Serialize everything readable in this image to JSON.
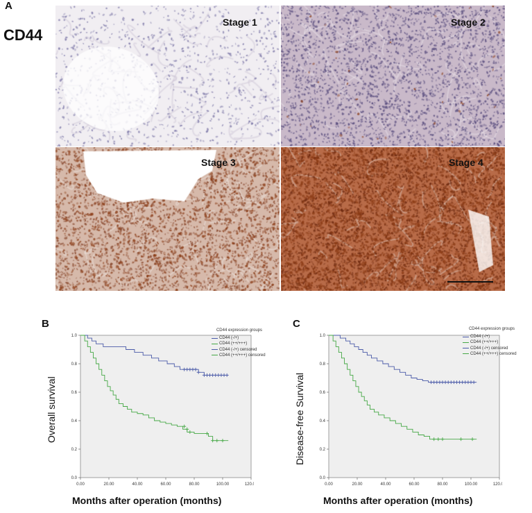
{
  "figure": {
    "panel_a": {
      "letter": "A",
      "marker": "CD44",
      "tiles": [
        {
          "label": "Stage 1",
          "base": "#f1eef2",
          "dot": "#7d78a8",
          "dots": 900,
          "brown": 0,
          "stroma": "#cfc8d8"
        },
        {
          "label": "Stage 2",
          "base": "#c9b9c9",
          "dot": "#5b4f80",
          "dots": 2600,
          "brown": 40,
          "stroma": "#e8e0e8"
        },
        {
          "label": "Stage 3",
          "base": "#d6b9aa",
          "dot": "#8a4a30",
          "dots": 2400,
          "brown": 1200,
          "stroma": "#ece2dc"
        },
        {
          "label": "Stage 4",
          "base": "#b86b48",
          "dot": "#6e2a10",
          "dots": 3200,
          "brown": 2800,
          "stroma": "#d9c2b6"
        }
      ]
    },
    "panel_b": {
      "letter": "B"
    },
    "panel_c": {
      "letter": "C"
    }
  },
  "chart_data": [
    {
      "type": "line",
      "subtype": "kaplan-meier",
      "xlabel": "Months after operation (months)",
      "ylabel": "Overall survival",
      "xlim": [
        0,
        120
      ],
      "ylim": [
        0,
        1
      ],
      "xticks": [
        "0.00",
        "20.00",
        "40.00",
        "60.00",
        "80.00",
        "100.00",
        "120.00"
      ],
      "yticks": [
        "0.0",
        "0.2",
        "0.4",
        "0.6",
        "0.8",
        "1.0"
      ],
      "grid": false,
      "legend_placement": "top-right",
      "legend": {
        "title": "CD44 expression groups",
        "entries": [
          "CD44 (-/+)",
          "CD44 (++/+++)",
          "CD44 (-/+) censored",
          "CD44 (++/+++) censored"
        ]
      },
      "colors": {
        "low": "#4a5aa8",
        "high": "#45a845"
      },
      "series": [
        {
          "name": "CD44 (-/+)",
          "color": "#4a5aa8",
          "x": [
            0,
            5,
            8,
            11,
            16,
            21,
            32,
            38,
            44,
            50,
            55,
            61,
            66,
            70,
            79,
            83,
            87,
            104
          ],
          "y": [
            1.0,
            0.98,
            0.96,
            0.94,
            0.92,
            0.92,
            0.9,
            0.88,
            0.86,
            0.84,
            0.82,
            0.8,
            0.78,
            0.76,
            0.76,
            0.74,
            0.72,
            0.72
          ],
          "censored_x": [
            73,
            75,
            77,
            79,
            81,
            83,
            87,
            89,
            91,
            93,
            95,
            97,
            99,
            101,
            103
          ],
          "censored_y": [
            0.76,
            0.76,
            0.76,
            0.76,
            0.76,
            0.74,
            0.72,
            0.72,
            0.72,
            0.72,
            0.72,
            0.72,
            0.72,
            0.72,
            0.72
          ]
        },
        {
          "name": "CD44 (++/+++)",
          "color": "#45a845",
          "x": [
            0,
            3,
            5,
            7,
            9,
            11,
            13,
            15,
            17,
            19,
            21,
            23,
            25,
            27,
            30,
            33,
            36,
            40,
            44,
            48,
            52,
            56,
            60,
            64,
            68,
            72,
            75,
            80,
            86,
            90,
            93,
            104
          ],
          "y": [
            1.0,
            0.96,
            0.92,
            0.88,
            0.84,
            0.8,
            0.76,
            0.72,
            0.68,
            0.64,
            0.61,
            0.58,
            0.55,
            0.52,
            0.5,
            0.48,
            0.46,
            0.45,
            0.44,
            0.42,
            0.4,
            0.39,
            0.38,
            0.37,
            0.36,
            0.34,
            0.32,
            0.31,
            0.31,
            0.29,
            0.26,
            0.26
          ],
          "censored_x": [
            73,
            75,
            77,
            89,
            93,
            96,
            100
          ],
          "censored_y": [
            0.36,
            0.34,
            0.32,
            0.31,
            0.26,
            0.26,
            0.26
          ]
        }
      ]
    },
    {
      "type": "line",
      "subtype": "kaplan-meier",
      "xlabel": "Months after operation (months)",
      "ylabel": "Disease-free Survival",
      "xlim": [
        0,
        120
      ],
      "ylim": [
        0,
        1
      ],
      "xticks": [
        "0.00",
        "20.00",
        "40.00",
        "60.00",
        "80.00",
        "100.00",
        "120.00"
      ],
      "yticks": [
        "0.0",
        "0.2",
        "0.4",
        "0.6",
        "0.8",
        "1.0"
      ],
      "grid": false,
      "legend_placement": "top-right",
      "legend": {
        "title": "CD44 expression groups",
        "entries": [
          "CD44 (-/+)",
          "CD44 (++/+++)",
          "CD44 (-/+) censored",
          "CD44 (++/+++) censored"
        ]
      },
      "colors": {
        "low": "#4a5aa8",
        "high": "#45a845"
      },
      "series": [
        {
          "name": "CD44 (-/+)",
          "color": "#4a5aa8",
          "x": [
            0,
            8,
            12,
            15,
            18,
            21,
            24,
            27,
            30,
            34,
            38,
            42,
            46,
            50,
            54,
            58,
            62,
            66,
            70,
            104
          ],
          "y": [
            1.0,
            0.98,
            0.96,
            0.94,
            0.92,
            0.9,
            0.88,
            0.86,
            0.84,
            0.82,
            0.8,
            0.78,
            0.76,
            0.74,
            0.72,
            0.7,
            0.69,
            0.68,
            0.67,
            0.67
          ],
          "censored_x": [
            72,
            74,
            76,
            78,
            80,
            82,
            84,
            86,
            88,
            90,
            92,
            94,
            96,
            98,
            100,
            102
          ],
          "censored_y": [
            0.67,
            0.67,
            0.67,
            0.67,
            0.67,
            0.67,
            0.67,
            0.67,
            0.67,
            0.67,
            0.67,
            0.67,
            0.67,
            0.67,
            0.67,
            0.67
          ]
        },
        {
          "name": "CD44 (++/+++)",
          "color": "#45a845",
          "x": [
            0,
            3,
            5,
            7,
            9,
            11,
            13,
            15,
            17,
            19,
            21,
            23,
            25,
            27,
            29,
            32,
            35,
            39,
            43,
            47,
            51,
            55,
            59,
            63,
            67,
            71,
            104
          ],
          "y": [
            1.0,
            0.96,
            0.92,
            0.88,
            0.84,
            0.8,
            0.76,
            0.72,
            0.68,
            0.64,
            0.6,
            0.57,
            0.54,
            0.51,
            0.48,
            0.46,
            0.44,
            0.42,
            0.4,
            0.38,
            0.36,
            0.34,
            0.32,
            0.3,
            0.29,
            0.27,
            0.27
          ],
          "censored_x": [
            74,
            77,
            80,
            93,
            101
          ],
          "censored_y": [
            0.27,
            0.27,
            0.27,
            0.27,
            0.27
          ]
        }
      ]
    }
  ]
}
